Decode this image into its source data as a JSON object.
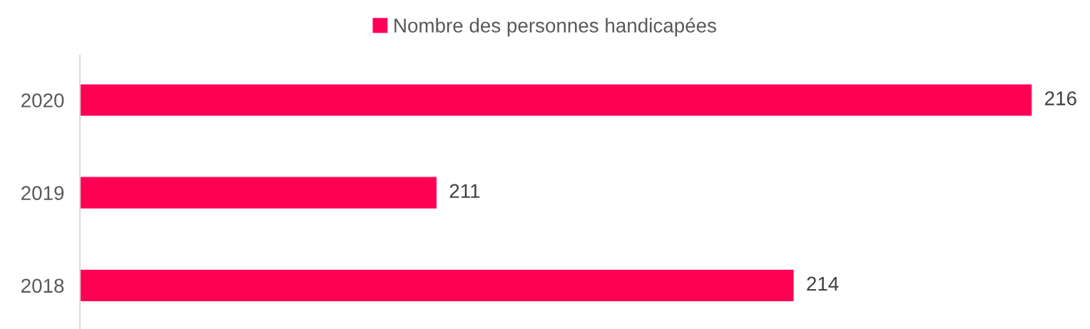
{
  "chart_data": {
    "type": "bar",
    "orientation": "horizontal",
    "categories": [
      "2020",
      "2019",
      "2018"
    ],
    "series": [
      {
        "name": "Nombre des personnes handicapées",
        "color": "#ff0055",
        "values": [
          216,
          211,
          214
        ]
      }
    ],
    "data_labels": true,
    "legend": "top",
    "grid": false,
    "tick_labels": "y"
  }
}
